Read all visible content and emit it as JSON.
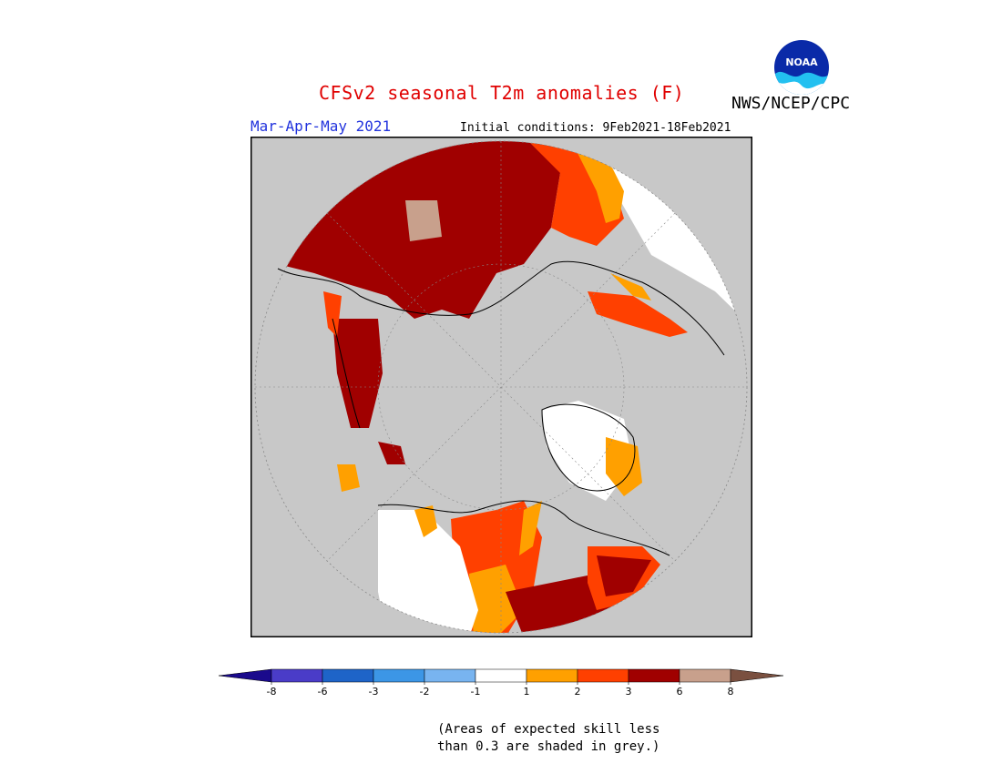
{
  "header": {
    "title": "CFSv2 seasonal T2m anomalies (F)",
    "org": "NWS/NCEP/CPC",
    "logo_text": "NOAA",
    "season": "Mar-Apr-May 2021",
    "initial_conditions": "Initial conditions: 9Feb2021-18Feb2021"
  },
  "legend": {
    "bins": [
      {
        "color": "#1a0a8c"
      },
      {
        "color": "#4a3cc8"
      },
      {
        "color": "#1e64c8"
      },
      {
        "color": "#3c96e6"
      },
      {
        "color": "#78b4f0"
      },
      {
        "color": "#ffffff"
      },
      {
        "color": "#ffa000"
      },
      {
        "color": "#ff4000"
      },
      {
        "color": "#a00000"
      },
      {
        "color": "#c8a08c"
      },
      {
        "color": "#7a5040"
      }
    ],
    "ticks": [
      "-8",
      "-6",
      "-3",
      "-2",
      "-1",
      "1",
      "2",
      "3",
      "6",
      "8"
    ]
  },
  "note": {
    "line1": "(Areas of expected skill less",
    "line2": "than 0.3 are shaded in grey.)"
  },
  "colors": {
    "grey": "#c8c8c8",
    "title_red": "#e00000",
    "season_blue": "#2233dd"
  }
}
